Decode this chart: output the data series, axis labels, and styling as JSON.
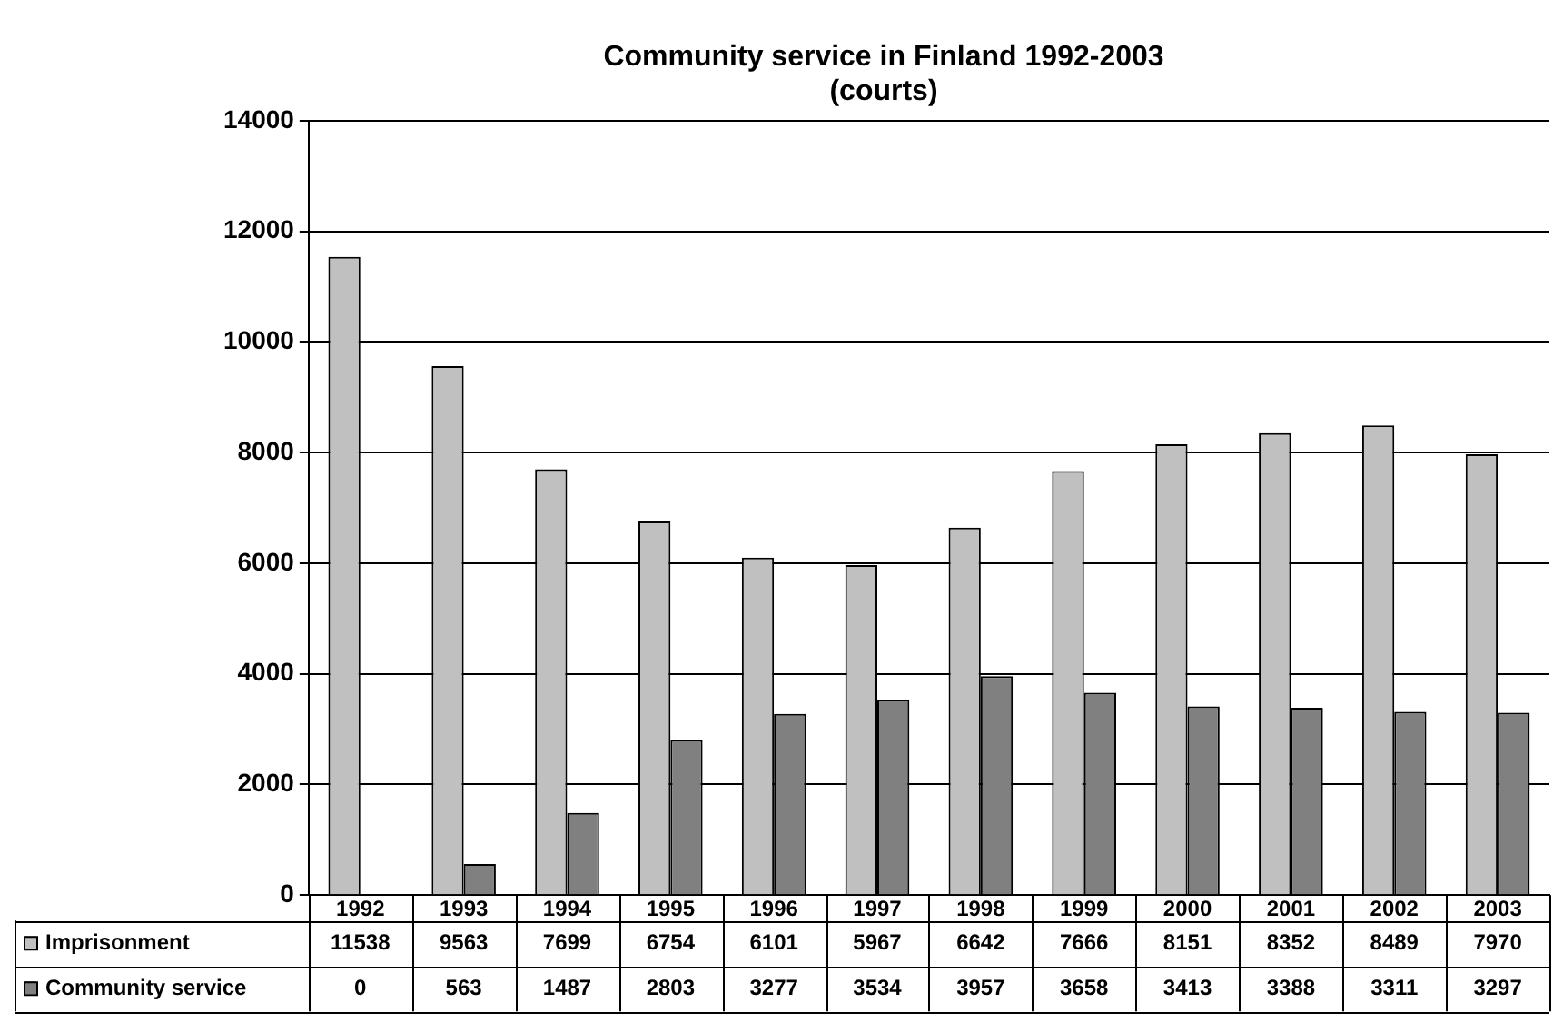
{
  "chart_data": {
    "type": "bar",
    "title": [
      "Community service in Finland 1992-2003",
      "(courts)"
    ],
    "categories": [
      "1992",
      "1993",
      "1994",
      "1995",
      "1996",
      "1997",
      "1998",
      "1999",
      "2000",
      "2001",
      "2002",
      "2003"
    ],
    "series": [
      {
        "name": "Imprisonment",
        "color": "#c0c0c0",
        "values": [
          11538,
          9563,
          7699,
          6754,
          6101,
          5967,
          6642,
          7666,
          8151,
          8352,
          8489,
          7970
        ]
      },
      {
        "name": "Community service",
        "color": "#808080",
        "values": [
          0,
          563,
          1487,
          2803,
          3277,
          3534,
          3957,
          3658,
          3413,
          3388,
          3311,
          3297
        ]
      }
    ],
    "ylim": [
      0,
      14000
    ],
    "yticks": [
      0,
      2000,
      4000,
      6000,
      8000,
      10000,
      12000,
      14000
    ],
    "grid": "y",
    "legend": "bottom left",
    "data_labels": true
  }
}
